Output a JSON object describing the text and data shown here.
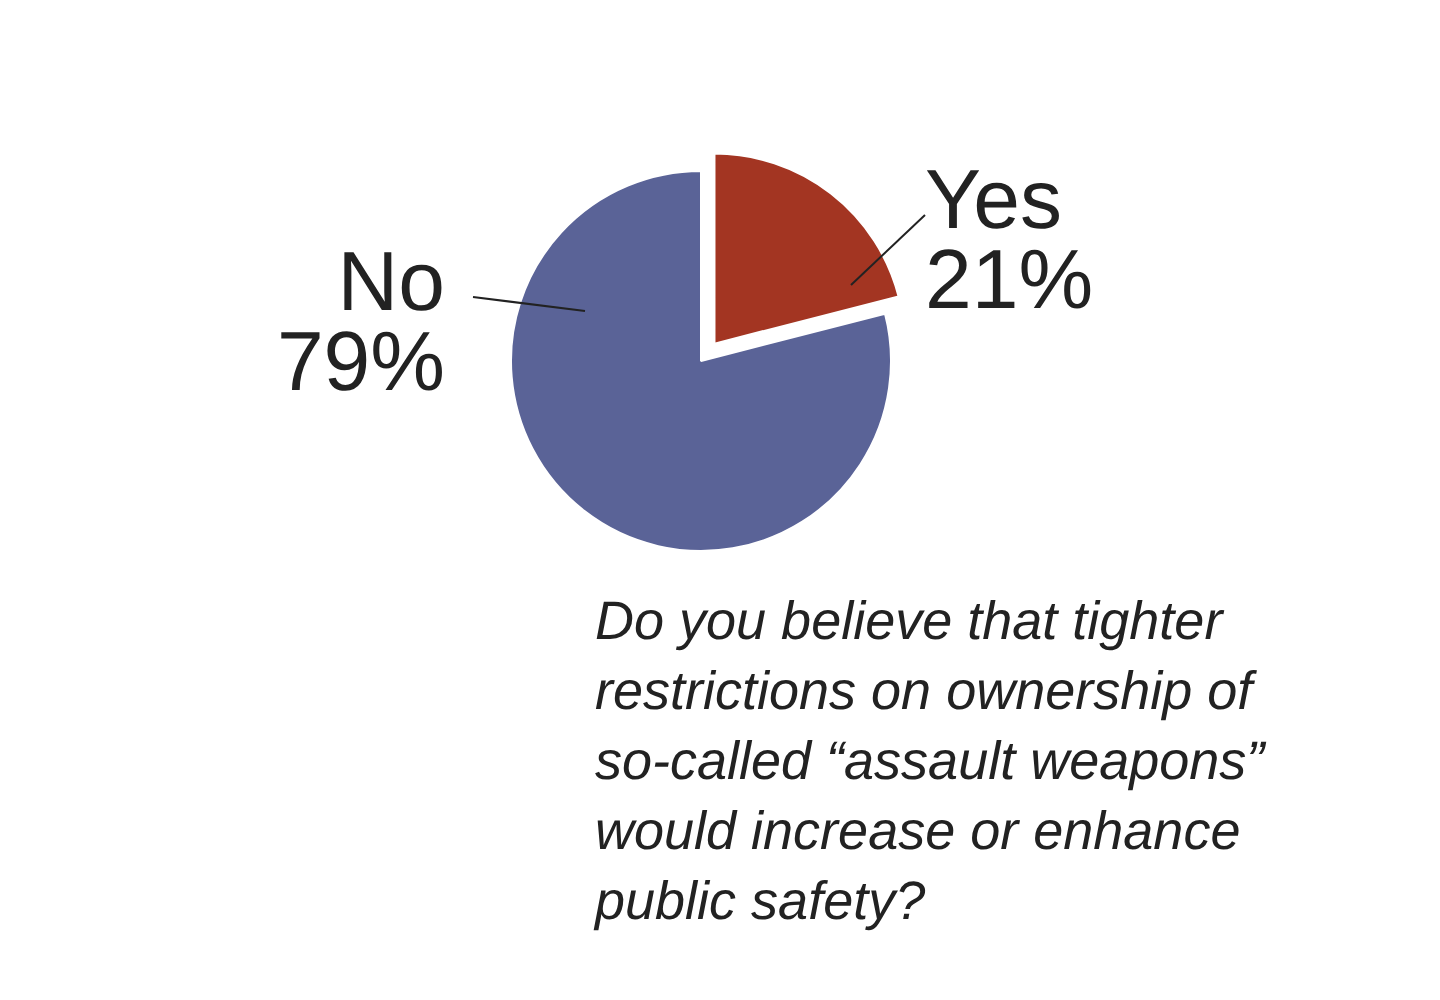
{
  "chart_data": {
    "type": "pie",
    "title": "Do you believe that tighter\nrestrictions on ownership of\nso-called “assault weapons”\nwould increase or enhance\npublic safety?",
    "categories": [
      "Yes",
      "No"
    ],
    "values": [
      21,
      79
    ],
    "colors": [
      "#a33522",
      "#5a6397"
    ],
    "value_labels": [
      "21%",
      "79%"
    ]
  }
}
